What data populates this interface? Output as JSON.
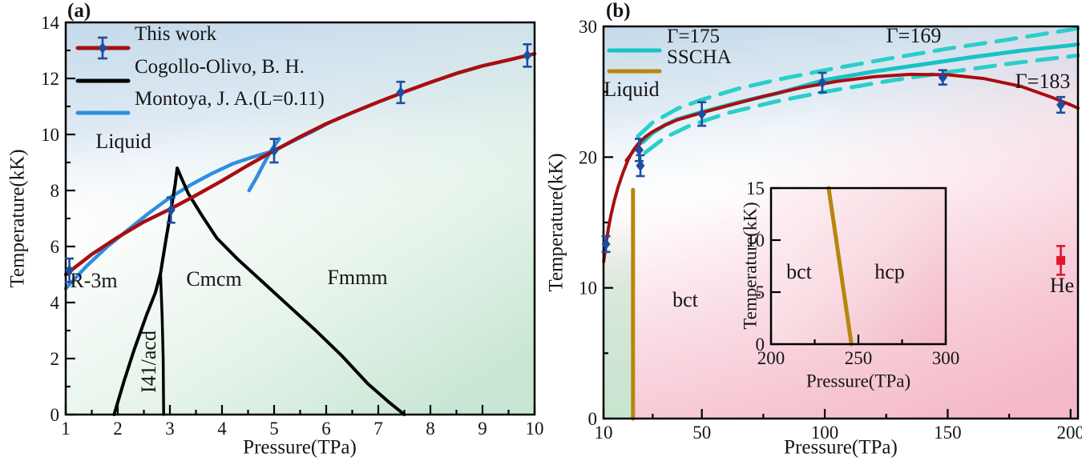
{
  "colors": {
    "this_work_red": "#A80D12",
    "montoya_blue": "#2F8FE0",
    "marker_navy": "#1D4E9E",
    "gamma_cyan": "#17C3C3",
    "gamma_cyan_dash": "#2BCFC9",
    "sscha_gold": "#B8860B",
    "cogollo_black": "#000000",
    "he_red": "#E5142C",
    "bg_blue": "#C6DAEB",
    "bg_green": "#CFE9D8",
    "bg_pink": "#F7C9D6",
    "inset_pink": "#F3B9C6"
  },
  "chart_data": [
    {
      "type": "line",
      "tag": "(a)",
      "xlabel": "Pressure(TPa)",
      "ylabel": "Temperature(kK)",
      "xlim": [
        1,
        10
      ],
      "ylim": [
        0,
        14
      ],
      "x_tick_vals": [
        1,
        2,
        3,
        4,
        5,
        6,
        7,
        8,
        9,
        10
      ],
      "x_tick_labels": [
        "1",
        "2",
        "3",
        "4",
        "5",
        "6",
        "7",
        "8",
        "9",
        "10"
      ],
      "x_tick_minor": [
        1.5,
        2.5,
        3.5,
        4.5,
        5.5,
        6.5,
        7.5,
        8.5,
        9.5
      ],
      "y_tick_vals": [
        0,
        2,
        4,
        6,
        8,
        10,
        12,
        14
      ],
      "y_tick_labels": [
        "0",
        "2",
        "4",
        "6",
        "8",
        "10",
        "12",
        "14"
      ],
      "y_tick_minor": [
        1,
        3,
        5,
        7,
        9,
        11,
        13
      ],
      "legend": [
        {
          "label": "This work",
          "color": "#A80D12",
          "glyph": "line-marker"
        },
        {
          "label": "Cogollo-Olivo, B. H.",
          "color": "#000000",
          "glyph": "line"
        },
        {
          "label": "Montoya, J. A.(L=0.11)",
          "color": "#2F8FE0",
          "glyph": "line"
        }
      ],
      "phase_labels": [
        {
          "text": "Liquid"
        },
        {
          "text": "R-3m"
        },
        {
          "text": "Cmcm"
        },
        {
          "text": "Fmmm"
        },
        {
          "text": "I41/acd"
        }
      ],
      "series": [
        {
          "name": "Montoya, J. A.(L=0.11)",
          "color": "#2F8FE0",
          "width": 4.5,
          "points": [
            [
              1,
              4.5
            ],
            [
              1.4,
              5.3
            ],
            [
              1.8,
              6.0
            ],
            [
              2.2,
              6.6
            ],
            [
              2.6,
              7.2
            ],
            [
              3.0,
              7.75
            ],
            [
              3.4,
              8.2
            ],
            [
              3.8,
              8.6
            ],
            [
              4.2,
              8.95
            ],
            [
              4.6,
              9.2
            ],
            [
              5.0,
              9.42
            ],
            [
              5.4,
              9.8
            ],
            [
              5.75,
              10.12
            ],
            [
              6.05,
              10.42
            ]
          ]
        },
        {
          "name": "Montoya branch",
          "color": "#2F8FE0",
          "width": 4.5,
          "points": [
            [
              4.52,
              8.0
            ],
            [
              4.66,
              8.45
            ],
            [
              4.8,
              8.95
            ],
            [
              4.95,
              9.45
            ],
            [
              5.1,
              9.85
            ]
          ]
        },
        {
          "name": "Cogollo-Olivo R-3m/I41acd boundary",
          "color": "#000000",
          "width": 4,
          "points": [
            [
              1.93,
              0
            ],
            [
              2.12,
              1.2
            ],
            [
              2.32,
              2.35
            ],
            [
              2.55,
              3.55
            ],
            [
              2.72,
              4.35
            ],
            [
              2.82,
              5.05
            ]
          ]
        },
        {
          "name": "Cogollo-Olivo I41acd/Cmcm boundary",
          "color": "#000000",
          "width": 3.5,
          "points": [
            [
              2.88,
              0
            ],
            [
              2.87,
              2.0
            ],
            [
              2.85,
              3.5
            ],
            [
              2.82,
              5.05
            ]
          ]
        },
        {
          "name": "Cogollo-Olivo main boundary",
          "color": "#000000",
          "width": 4,
          "points": [
            [
              2.82,
              5.05
            ],
            [
              2.92,
              6.2
            ],
            [
              3.02,
              7.3
            ],
            [
              3.1,
              8.2
            ],
            [
              3.14,
              8.8
            ],
            [
              3.22,
              8.45
            ],
            [
              3.35,
              7.9
            ],
            [
              3.6,
              7.15
            ],
            [
              3.9,
              6.3
            ],
            [
              4.3,
              5.55
            ],
            [
              4.8,
              4.7
            ],
            [
              5.3,
              3.85
            ],
            [
              5.8,
              3.0
            ],
            [
              6.3,
              2.1
            ],
            [
              6.8,
              1.1
            ],
            [
              7.2,
              0.45
            ],
            [
              7.5,
              0
            ]
          ]
        },
        {
          "name": "This work melting line",
          "color": "#A80D12",
          "width": 4.5,
          "points": [
            [
              1,
              5.0
            ],
            [
              1.5,
              5.72
            ],
            [
              2,
              6.33
            ],
            [
              2.5,
              6.88
            ],
            [
              3,
              7.33
            ],
            [
              3.5,
              7.83
            ],
            [
              4,
              8.35
            ],
            [
              4.5,
              8.9
            ],
            [
              5,
              9.42
            ],
            [
              5.5,
              9.92
            ],
            [
              6,
              10.38
            ],
            [
              6.5,
              10.78
            ],
            [
              7,
              11.16
            ],
            [
              7.5,
              11.52
            ],
            [
              8,
              11.86
            ],
            [
              8.5,
              12.18
            ],
            [
              9,
              12.45
            ],
            [
              9.5,
              12.66
            ],
            [
              10,
              12.88
            ]
          ]
        }
      ],
      "markers": [
        {
          "shape": "diamond",
          "color": "#1D4E9E",
          "points": [
            {
              "x": 1.07,
              "y": 5.15,
              "err": 0.42
            },
            {
              "x": 3.02,
              "y": 7.3,
              "err": 0.45
            },
            {
              "x": 5.0,
              "y": 9.42,
              "err": 0.42
            },
            {
              "x": 7.43,
              "y": 11.5,
              "err": 0.38
            },
            {
              "x": 9.86,
              "y": 12.82,
              "err": 0.4
            }
          ]
        }
      ]
    },
    {
      "type": "line",
      "tag": "(b)",
      "xlabel": "Pressure(TPa)",
      "ylabel": "Temperature(kK)",
      "xlim": [
        10,
        203
      ],
      "ylim": [
        0,
        30
      ],
      "x_tick_vals": [
        10,
        50,
        100,
        150,
        200
      ],
      "x_tick_labels": [
        "10",
        "50",
        "100",
        "150",
        "200"
      ],
      "x_tick_minor": [
        30,
        75,
        125,
        175
      ],
      "y_tick_vals": [
        0,
        10,
        20,
        30
      ],
      "y_tick_labels": [
        "0",
        "10",
        "20",
        "30"
      ],
      "y_tick_minor": [
        5,
        15,
        25
      ],
      "legend": [
        {
          "label": "Γ=175",
          "color": "#17C3C3",
          "glyph": "line"
        },
        {
          "label": "SSCHA",
          "color": "#B8860B",
          "glyph": "line"
        }
      ],
      "phase_labels": [
        {
          "text": "Liquid"
        },
        {
          "text": "bct"
        },
        {
          "text": "He"
        }
      ],
      "annotations": [
        {
          "text": "Γ=169"
        },
        {
          "text": "Γ=183"
        }
      ],
      "series": [
        {
          "name": "SSCHA bct boundary",
          "color": "#B8860B",
          "width": 5,
          "points": [
            [
              22,
              0
            ],
            [
              22,
              17.5
            ]
          ]
        },
        {
          "name": "Gamma=169 band",
          "color": "#2BCFC9",
          "width": 5,
          "dash": "25 14",
          "points": [
            [
              24,
              21.6
            ],
            [
              30,
              22.65
            ],
            [
              40,
              23.7
            ],
            [
              50,
              24.4
            ],
            [
              65,
              25.25
            ],
            [
              80,
              25.9
            ],
            [
              100,
              26.65
            ],
            [
              125,
              27.5
            ],
            [
              150,
              28.3
            ],
            [
              175,
              29.0
            ],
            [
              195,
              29.6
            ],
            [
              203,
              29.85
            ]
          ]
        },
        {
          "name": "Gamma=183 band",
          "color": "#2BCFC9",
          "width": 5,
          "dash": "25 14",
          "points": [
            [
              27,
              20.35
            ],
            [
              35,
              21.5
            ],
            [
              45,
              22.4
            ],
            [
              60,
              23.35
            ],
            [
              80,
              24.25
            ],
            [
              100,
              25.0
            ],
            [
              125,
              25.8
            ],
            [
              150,
              26.5
            ],
            [
              175,
              27.15
            ],
            [
              195,
              27.6
            ],
            [
              203,
              27.78
            ]
          ]
        },
        {
          "name": "This work low-P segment",
          "color": "#A80D12",
          "width": 4,
          "points": [
            [
              19.3,
              19.75
            ],
            [
              22.5,
              20.55
            ],
            [
              26.5,
              21.35
            ]
          ]
        },
        {
          "name": "Gamma=175 line",
          "color": "#17C3C3",
          "width": 5,
          "points": [
            [
              26,
              21.15
            ],
            [
              30,
              21.85
            ],
            [
              35,
              22.45
            ],
            [
              40,
              22.9
            ],
            [
              50,
              23.45
            ],
            [
              65,
              24.2
            ],
            [
              80,
              24.85
            ],
            [
              100,
              25.9
            ],
            [
              120,
              26.55
            ],
            [
              140,
              27.1
            ],
            [
              160,
              27.65
            ],
            [
              180,
              28.15
            ],
            [
              200,
              28.55
            ],
            [
              203,
              28.62
            ]
          ]
        },
        {
          "name": "This work melting line",
          "color": "#A80D12",
          "width": 4,
          "points": [
            [
              10.05,
              12.0
            ],
            [
              11,
              13.35
            ],
            [
              12,
              14.55
            ],
            [
              13,
              15.55
            ],
            [
              14.5,
              16.75
            ],
            [
              16,
              17.75
            ],
            [
              18,
              18.85
            ],
            [
              20,
              19.8
            ],
            [
              22,
              20.5
            ],
            [
              24,
              21.0
            ],
            [
              27,
              21.55
            ],
            [
              30,
              21.95
            ],
            [
              35,
              22.45
            ],
            [
              40,
              22.85
            ],
            [
              50,
              23.4
            ],
            [
              60,
              23.9
            ],
            [
              75,
              24.65
            ],
            [
              90,
              25.3
            ],
            [
              105,
              25.8
            ],
            [
              120,
              26.15
            ],
            [
              135,
              26.33
            ],
            [
              150,
              26.3
            ],
            [
              165,
              26.0
            ],
            [
              180,
              25.4
            ],
            [
              192,
              24.6
            ],
            [
              200,
              24.0
            ],
            [
              203,
              23.75
            ]
          ]
        }
      ],
      "markers": [
        {
          "shape": "diamond",
          "color": "#1D4E9E",
          "points": [
            {
              "x": 11,
              "y": 13.35,
              "err": 0.6
            },
            {
              "x": 24.5,
              "y": 20.55,
              "err": 0.85
            },
            {
              "x": 25,
              "y": 19.35,
              "err": 0.8
            },
            {
              "x": 50,
              "y": 23.3,
              "err": 0.9
            },
            {
              "x": 99,
              "y": 25.7,
              "err": 0.75
            },
            {
              "x": 148,
              "y": 26.1,
              "err": 0.55
            },
            {
              "x": 196,
              "y": 24.0,
              "err": 0.6
            }
          ]
        },
        {
          "shape": "square",
          "color": "#E5142C",
          "points": [
            {
              "x": 196,
              "y": 12.1,
              "err": 1.1
            }
          ]
        }
      ]
    },
    {
      "type": "line",
      "tag": "inset",
      "xlabel": "Pressure(TPa)",
      "ylabel": "Temperature(kK)",
      "xlim": [
        200,
        300
      ],
      "ylim": [
        0,
        15
      ],
      "x_tick_vals": [
        200,
        250,
        300
      ],
      "x_tick_labels": [
        "200",
        "250",
        "300"
      ],
      "x_tick_minor": [
        225,
        275
      ],
      "y_tick_vals": [
        0,
        5,
        10,
        15
      ],
      "y_tick_labels": [
        "0",
        "5",
        "10",
        "15"
      ],
      "y_tick_minor": [],
      "phase_labels": [
        {
          "text": "bct"
        },
        {
          "text": "hcp"
        }
      ],
      "series": [
        {
          "name": "SSCHA bct/hcp boundary",
          "color": "#B8860B",
          "width": 5,
          "points": [
            [
              233,
              15
            ],
            [
              246,
              0
            ]
          ]
        }
      ],
      "markers": []
    }
  ]
}
